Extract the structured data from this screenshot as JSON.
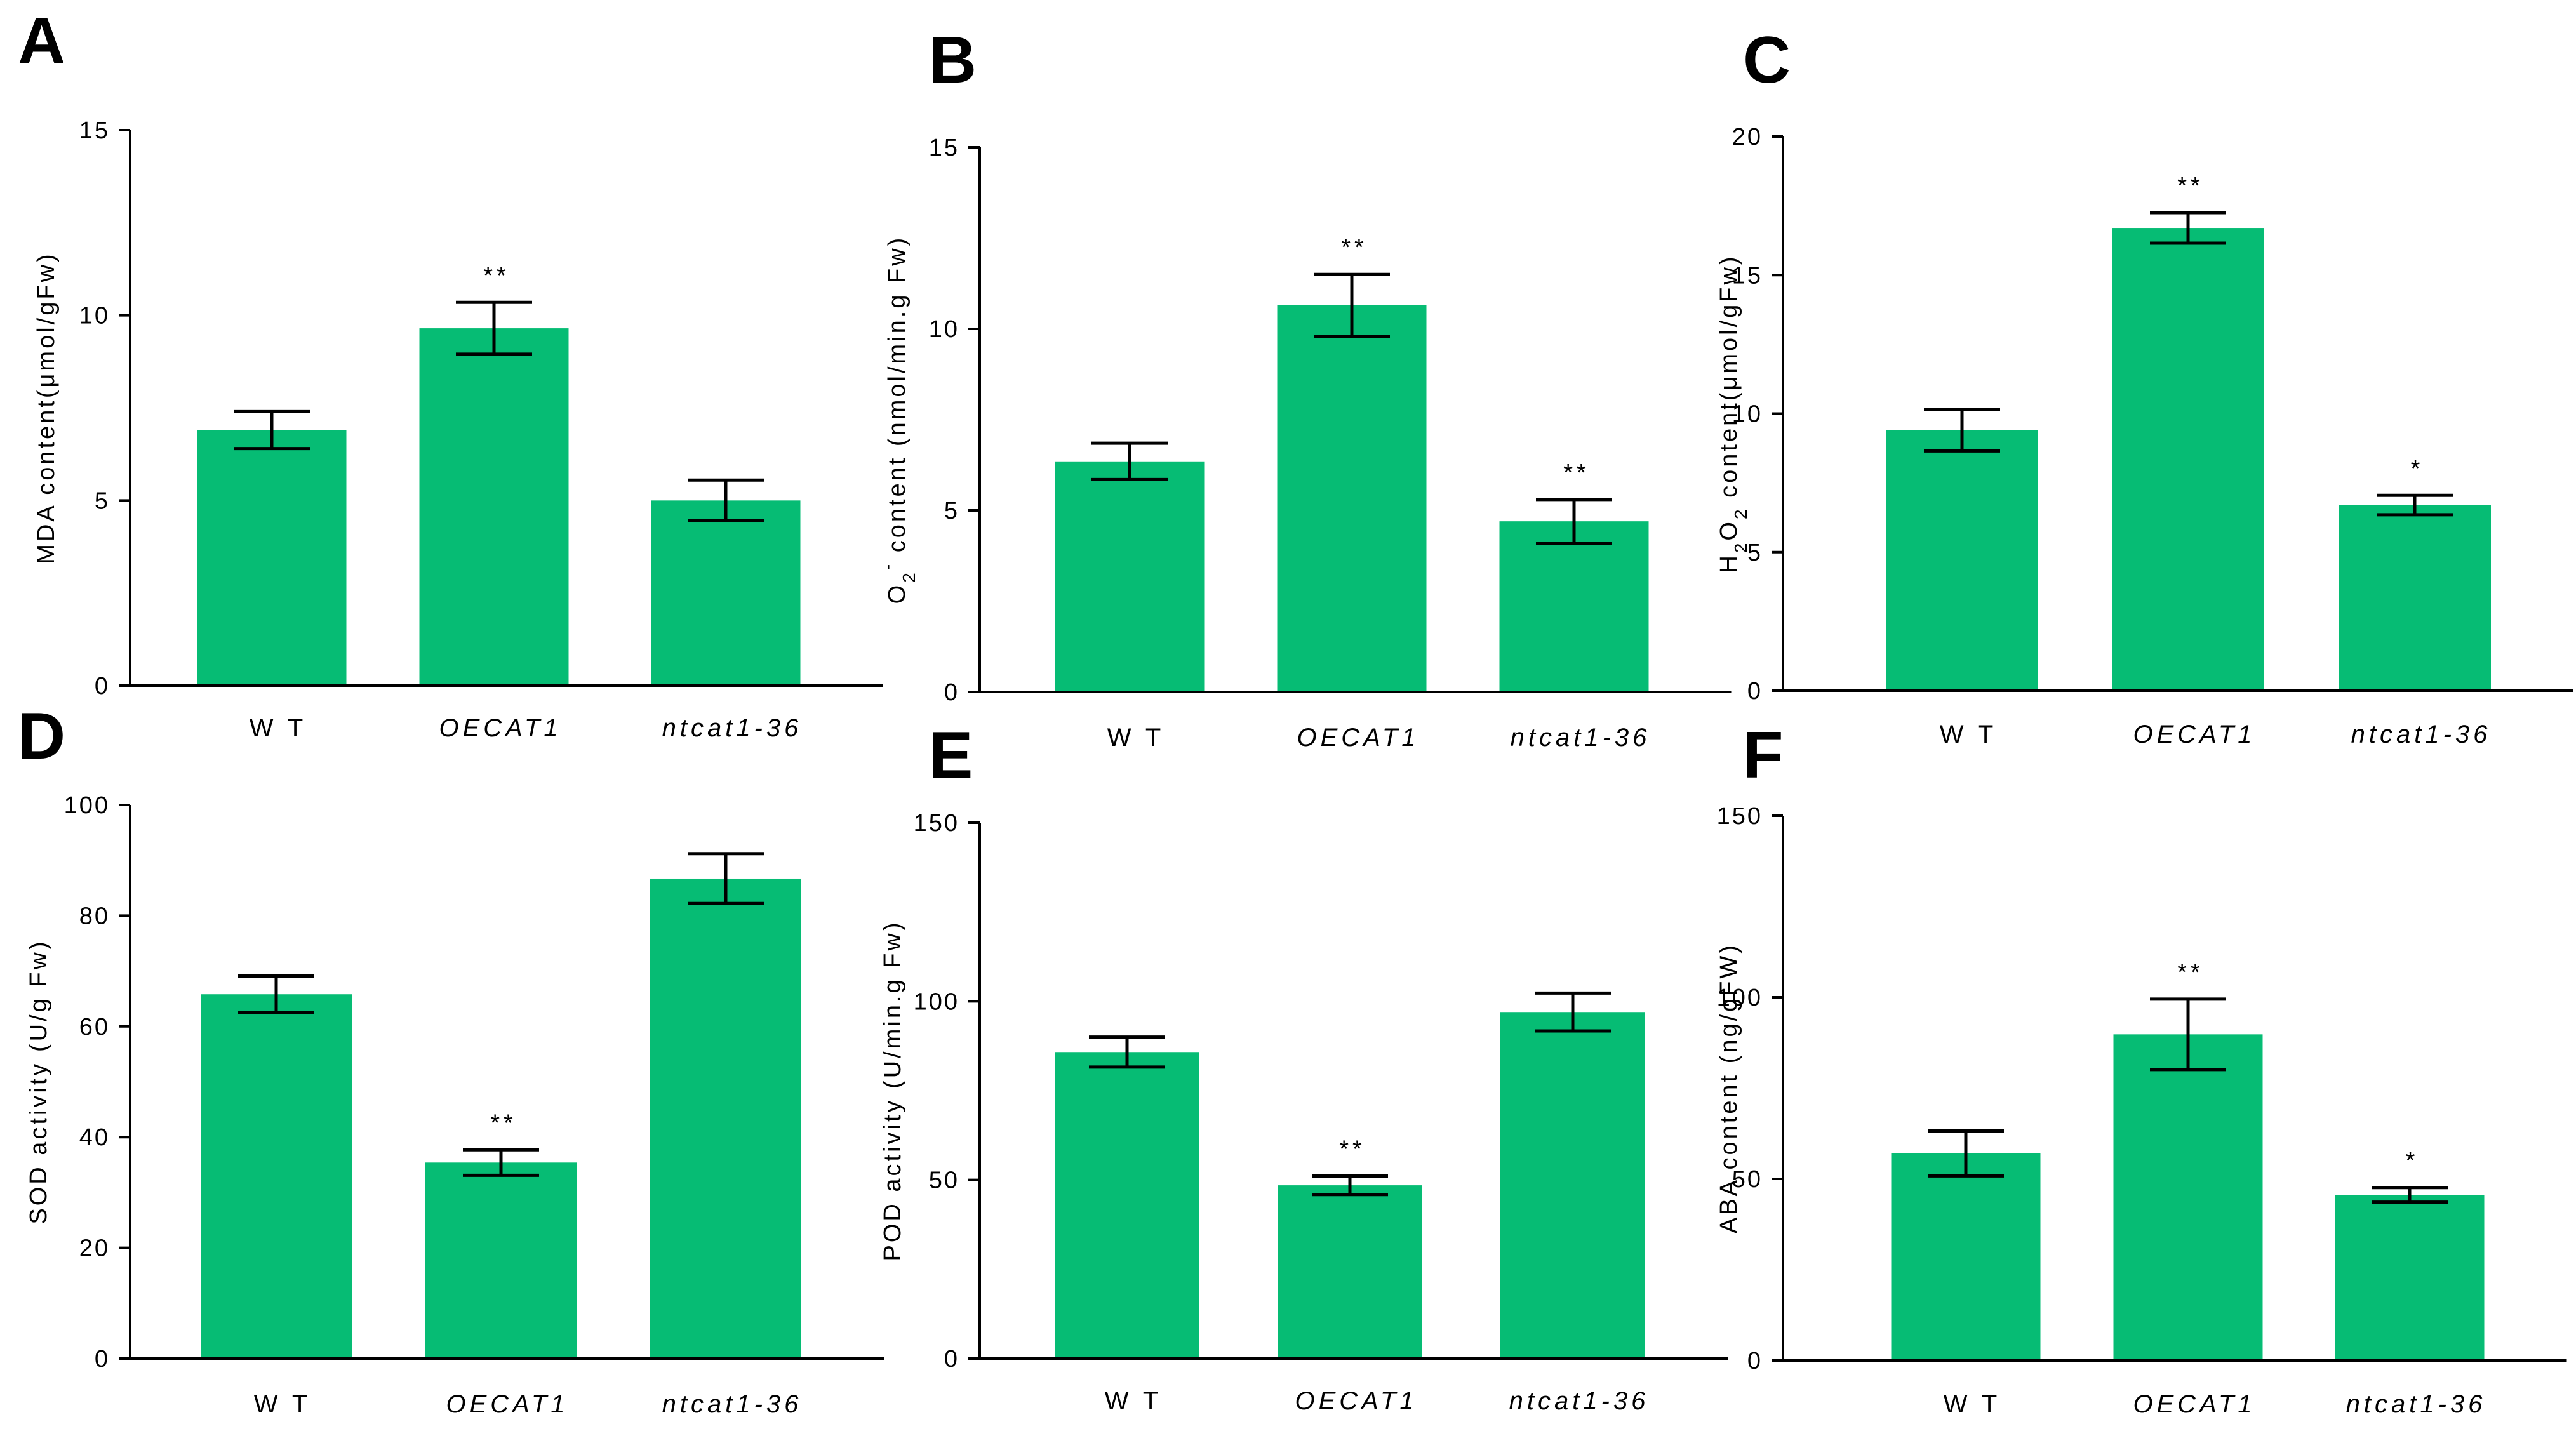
{
  "colors": {
    "bar": "#06BC74",
    "axis": "#000000",
    "error": "#000000"
  },
  "chart_data": [
    {
      "panel": "A",
      "type": "bar",
      "categories": [
        "W T",
        "OECAT1",
        "ntcat1-36"
      ],
      "italic": [
        false,
        true,
        true
      ],
      "values": [
        6.9,
        9.65,
        5.0
      ],
      "errors": [
        0.5,
        0.7,
        0.55
      ],
      "significance": [
        "",
        "**",
        ""
      ],
      "ylabel": "MDA content(μmol/gFw)",
      "ylim": [
        0,
        15
      ],
      "yticks": [
        0,
        5,
        10,
        15
      ]
    },
    {
      "panel": "B",
      "type": "bar",
      "categories": [
        "W T",
        "OECAT1",
        "ntcat1-36"
      ],
      "italic": [
        false,
        true,
        true
      ],
      "values": [
        6.35,
        10.65,
        4.7
      ],
      "errors": [
        0.5,
        0.85,
        0.6
      ],
      "significance": [
        "",
        "**",
        "**"
      ],
      "ylabel": "O2- content (nmol/min.g Fw)",
      "ylim": [
        0,
        15
      ],
      "yticks": [
        0,
        5,
        10,
        15
      ]
    },
    {
      "panel": "C",
      "type": "bar",
      "categories": [
        "W T",
        "OECAT1",
        "ntcat1-36"
      ],
      "italic": [
        false,
        true,
        true
      ],
      "values": [
        9.4,
        16.7,
        6.7
      ],
      "errors": [
        0.75,
        0.55,
        0.35
      ],
      "significance": [
        "",
        "**",
        "*"
      ],
      "ylabel": "H2O2 content(μmol/gFw)",
      "ylim": [
        0,
        20
      ],
      "yticks": [
        0,
        5,
        10,
        15,
        20
      ]
    },
    {
      "panel": "D",
      "type": "bar",
      "categories": [
        "W T",
        "OECAT1",
        "ntcat1-36"
      ],
      "italic": [
        false,
        true,
        true
      ],
      "values": [
        65.8,
        35.4,
        86.7
      ],
      "errors": [
        3.3,
        2.3,
        4.5
      ],
      "significance": [
        "",
        "**",
        ""
      ],
      "ylabel": "SOD activity (U/g Fw)",
      "ylim": [
        0,
        100
      ],
      "yticks": [
        0,
        20,
        40,
        60,
        80,
        100
      ]
    },
    {
      "panel": "E",
      "type": "bar",
      "categories": [
        "W T",
        "OECAT1",
        "ntcat1-36"
      ],
      "italic": [
        false,
        true,
        true
      ],
      "values": [
        85.8,
        48.5,
        97.0
      ],
      "errors": [
        4.2,
        2.6,
        5.3
      ],
      "significance": [
        "",
        "**",
        ""
      ],
      "ylabel": "POD activity (U/min.g Fw)",
      "ylim": [
        0,
        150
      ],
      "yticks": [
        0,
        50,
        100,
        150
      ]
    },
    {
      "panel": "F",
      "type": "bar",
      "categories": [
        "W T",
        "OECAT1",
        "ntcat1-36"
      ],
      "italic": [
        false,
        true,
        true
      ],
      "values": [
        57.0,
        89.8,
        45.6
      ],
      "errors": [
        6.2,
        9.7,
        2.0
      ],
      "significance": [
        "",
        "**",
        "*"
      ],
      "ylabel": "ABA content (ng/gFW)",
      "ylim": [
        0,
        150
      ],
      "yticks": [
        0,
        50,
        100,
        150
      ]
    }
  ]
}
